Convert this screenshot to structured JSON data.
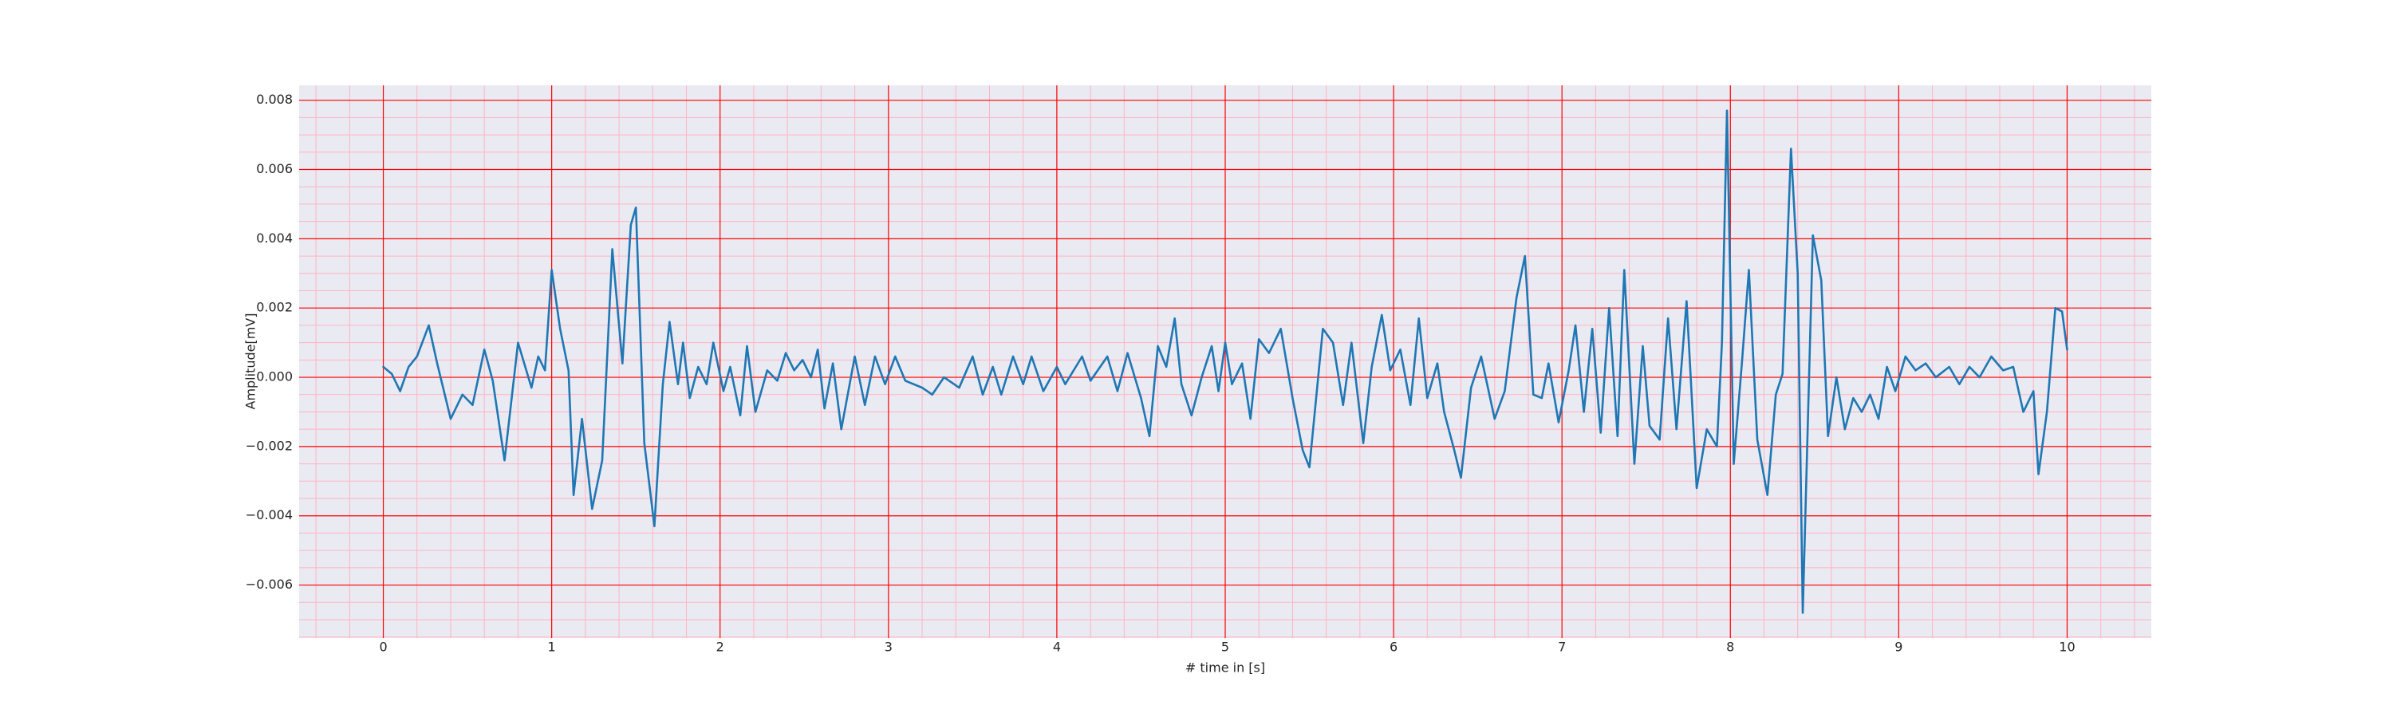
{
  "chart_data": {
    "type": "line",
    "xlabel": "# time in [s]",
    "ylabel": "Amplitude[mV]",
    "xlim": [
      -0.5,
      10.5
    ],
    "ylim": [
      -0.00753,
      0.00843
    ],
    "xticks": [
      0,
      1,
      2,
      3,
      4,
      5,
      6,
      7,
      8,
      9,
      10
    ],
    "yticks": [
      {
        "value": -0.006,
        "label": "−0.006"
      },
      {
        "value": -0.004,
        "label": "−0.004"
      },
      {
        "value": -0.002,
        "label": "−0.002"
      },
      {
        "value": 0,
        "label": "0.000"
      },
      {
        "value": 0.002,
        "label": "0.002"
      },
      {
        "value": 0.004,
        "label": "0.004"
      },
      {
        "value": 0.006,
        "label": "0.006"
      },
      {
        "value": 0.008,
        "label": "0.008"
      }
    ],
    "minor_xticks": [
      -0.4,
      -0.2,
      0.2,
      0.4,
      0.6,
      0.8,
      1.2,
      1.4,
      1.6,
      1.8,
      2.2,
      2.4,
      2.6,
      2.8,
      3.2,
      3.4,
      3.6,
      3.8,
      4.2,
      4.4,
      4.6,
      4.8,
      5.2,
      5.4,
      5.6,
      5.8,
      6.2,
      6.4,
      6.6,
      6.8,
      7.2,
      7.4,
      7.6,
      7.8,
      8.2,
      8.4,
      8.6,
      8.8,
      9.2,
      9.4,
      9.6,
      9.8,
      10.2,
      10.4
    ],
    "minor_yticks": [
      -0.0075,
      -0.007,
      -0.0065,
      -0.0055,
      -0.005,
      -0.0045,
      -0.0035,
      -0.003,
      -0.0025,
      -0.0015,
      -0.001,
      -0.0005,
      0.0005,
      0.001,
      0.0015,
      0.0025,
      0.003,
      0.0035,
      0.0045,
      0.005,
      0.0055,
      0.0065,
      0.007,
      0.0075
    ],
    "grid": true,
    "grid_color": "#ff0000",
    "minor_grid_color": "#ffb3c0",
    "background": "#eaeaf2",
    "series": [
      {
        "color": "#1f77b4",
        "x": [
          0,
          0.05,
          0.1,
          0.15,
          0.2,
          0.27,
          0.32,
          0.4,
          0.47,
          0.53,
          0.6,
          0.65,
          0.72,
          0.8,
          0.88,
          0.92,
          0.96,
          1.0,
          1.05,
          1.1,
          1.13,
          1.18,
          1.24,
          1.3,
          1.36,
          1.42,
          1.47,
          1.5,
          1.55,
          1.61,
          1.66,
          1.7,
          1.75,
          1.78,
          1.82,
          1.87,
          1.92,
          1.96,
          2.02,
          2.06,
          2.12,
          2.16,
          2.21,
          2.28,
          2.34,
          2.39,
          2.44,
          2.49,
          2.54,
          2.58,
          2.62,
          2.67,
          2.72,
          2.8,
          2.86,
          2.92,
          2.98,
          3.04,
          3.1,
          3.2,
          3.26,
          3.33,
          3.42,
          3.5,
          3.56,
          3.62,
          3.67,
          3.74,
          3.8,
          3.85,
          3.92,
          4.0,
          4.05,
          4.15,
          4.2,
          4.3,
          4.36,
          4.42,
          4.5,
          4.55,
          4.6,
          4.65,
          4.7,
          4.74,
          4.8,
          4.86,
          4.92,
          4.96,
          5.0,
          5.04,
          5.1,
          5.15,
          5.2,
          5.26,
          5.33,
          5.4,
          5.46,
          5.5,
          5.58,
          5.64,
          5.7,
          5.75,
          5.82,
          5.87,
          5.93,
          5.98,
          6.04,
          6.1,
          6.15,
          6.2,
          6.26,
          6.3,
          6.36,
          6.4,
          6.46,
          6.52,
          6.6,
          6.66,
          6.73,
          6.78,
          6.83,
          6.88,
          6.92,
          6.98,
          7.04,
          7.08,
          7.13,
          7.18,
          7.23,
          7.28,
          7.33,
          7.37,
          7.43,
          7.48,
          7.52,
          7.58,
          7.63,
          7.68,
          7.74,
          7.8,
          7.86,
          7.92,
          7.95,
          7.98,
          8.02,
          8.07,
          8.11,
          8.16,
          8.22,
          8.27,
          8.31,
          8.36,
          8.4,
          8.43,
          8.49,
          8.54,
          8.58,
          8.63,
          8.68,
          8.73,
          8.78,
          8.83,
          8.88,
          8.93,
          8.98,
          9.04,
          9.1,
          9.16,
          9.22,
          9.3,
          9.36,
          9.42,
          9.48,
          9.55,
          9.62,
          9.68,
          9.74,
          9.8,
          9.83,
          9.88,
          9.93,
          9.97,
          10.0
        ],
        "values": [
          0.0003,
          0.0001,
          -0.0004,
          0.0003,
          0.0006,
          0.0015,
          0.0004,
          -0.0012,
          -0.0005,
          -0.0008,
          0.0008,
          -0.0001,
          -0.0024,
          0.001,
          -0.0003,
          0.0006,
          0.0002,
          0.0031,
          0.0014,
          0.0002,
          -0.0034,
          -0.0012,
          -0.0038,
          -0.0024,
          0.0037,
          0.0004,
          0.0044,
          0.0049,
          -0.0019,
          -0.0043,
          -0.0002,
          0.0016,
          -0.0002,
          0.001,
          -0.0006,
          0.0003,
          -0.0002,
          0.001,
          -0.0004,
          0.0003,
          -0.0011,
          0.0009,
          -0.001,
          0.0002,
          -0.0001,
          0.0007,
          0.0002,
          0.0005,
          0.0,
          0.0008,
          -0.0009,
          0.0004,
          -0.0015,
          0.0006,
          -0.0008,
          0.0006,
          -0.0002,
          0.0006,
          -0.0001,
          -0.0003,
          -0.0005,
          0.0,
          -0.0003,
          0.0006,
          -0.0005,
          0.0003,
          -0.0005,
          0.0006,
          -0.0002,
          0.0006,
          -0.0004,
          0.0003,
          -0.0002,
          0.0006,
          -0.0001,
          0.0006,
          -0.0004,
          0.0007,
          -0.0006,
          -0.0017,
          0.0009,
          0.0003,
          0.0017,
          -0.0002,
          -0.0011,
          0.0,
          0.0009,
          -0.0004,
          0.001,
          -0.0002,
          0.0004,
          -0.0012,
          0.0011,
          0.0007,
          0.0014,
          -0.0006,
          -0.0021,
          -0.0026,
          0.0014,
          0.001,
          -0.0008,
          0.001,
          -0.0019,
          0.0003,
          0.0018,
          0.0002,
          0.0008,
          -0.0008,
          0.0017,
          -0.0006,
          0.0004,
          -0.001,
          -0.0021,
          -0.0029,
          -0.0003,
          0.0006,
          -0.0012,
          -0.0004,
          0.0023,
          0.0035,
          -0.0005,
          -0.0006,
          0.0004,
          -0.0013,
          0.0002,
          0.0015,
          -0.001,
          0.0014,
          -0.0016,
          0.002,
          -0.0017,
          0.0031,
          -0.0025,
          0.0009,
          -0.0014,
          -0.0018,
          0.0017,
          -0.0015,
          0.0022,
          -0.0032,
          -0.0015,
          -0.002,
          0.001,
          0.0077,
          -0.0025,
          0.0005,
          0.0031,
          -0.0018,
          -0.0034,
          -0.0005,
          0.0001,
          0.0066,
          0.003,
          -0.0068,
          0.0041,
          0.0028,
          -0.0017,
          0.0,
          -0.0015,
          -0.0006,
          -0.001,
          -0.0005,
          -0.0012,
          0.0003,
          -0.0004,
          0.0006,
          0.0002,
          0.0004,
          0.0,
          0.0003,
          -0.0002,
          0.0003,
          0.0,
          0.0006,
          0.0002,
          0.0003,
          -0.001,
          -0.0004,
          -0.0028,
          -0.001,
          0.002,
          0.0019,
          0.0008
        ]
      }
    ]
  }
}
